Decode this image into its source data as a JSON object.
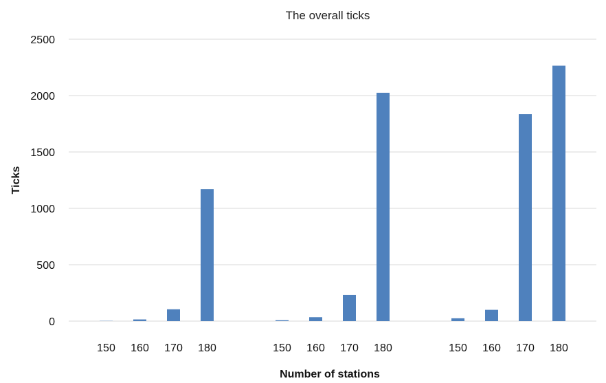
{
  "chart_data": {
    "type": "bar",
    "title": "The overall ticks",
    "xlabel": "Number of stations",
    "ylabel": "Ticks",
    "ylim": [
      0,
      2500
    ],
    "yticks": [
      0,
      500,
      1000,
      1500,
      2000,
      2500
    ],
    "grid": true,
    "legend": "none",
    "categories": [
      "150",
      "160",
      "170",
      "180",
      "150",
      "160",
      "170",
      "180",
      "150",
      "160",
      "170",
      "180"
    ],
    "values": [
      2,
      15,
      105,
      1170,
      8,
      35,
      232,
      2025,
      25,
      100,
      1835,
      2265
    ],
    "bar_color": "#4F81BD",
    "grid_color": "#D9D9D9"
  }
}
